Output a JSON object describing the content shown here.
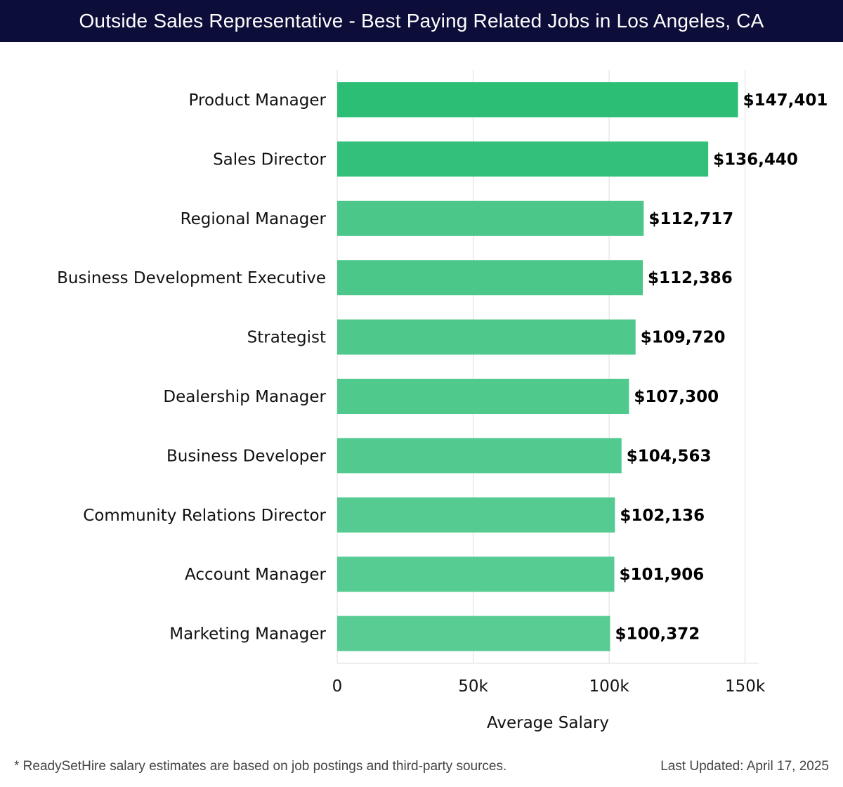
{
  "header": {
    "title": "Outside Sales Representative - Best Paying Related Jobs in Los Angeles, CA"
  },
  "chart_data": {
    "type": "bar",
    "orientation": "horizontal",
    "categories": [
      "Product Manager",
      "Sales Director",
      "Regional Manager",
      "Business Development Executive",
      "Strategist",
      "Dealership Manager",
      "Business Developer",
      "Community Relations Director",
      "Account Manager",
      "Marketing Manager"
    ],
    "values": [
      147401,
      136440,
      112717,
      112386,
      109720,
      107300,
      104563,
      102136,
      101906,
      100372
    ],
    "value_labels": [
      "$147,401",
      "$136,440",
      "$112,717",
      "$112,386",
      "$109,720",
      "$107,300",
      "$104,563",
      "$102,136",
      "$101,906",
      "$100,372"
    ],
    "bar_colors": [
      "#2dbe76",
      "#33c07a",
      "#4cc78a",
      "#4cc78a",
      "#4ec88b",
      "#50c98d",
      "#52ca8f",
      "#55cb91",
      "#56cc92",
      "#58cc93"
    ],
    "xlabel": "Average Salary",
    "ylabel": "",
    "xlim": [
      0,
      155000
    ],
    "xticks": [
      0,
      50000,
      100000,
      150000
    ],
    "xtick_labels": [
      "0",
      "50k",
      "100k",
      "150k"
    ],
    "grid": true,
    "gridline_color": "#dddddd"
  },
  "footer": {
    "note": "* ReadySetHire salary estimates are based on job postings and third-party sources.",
    "updated": "Last Updated: April 17, 2025"
  }
}
